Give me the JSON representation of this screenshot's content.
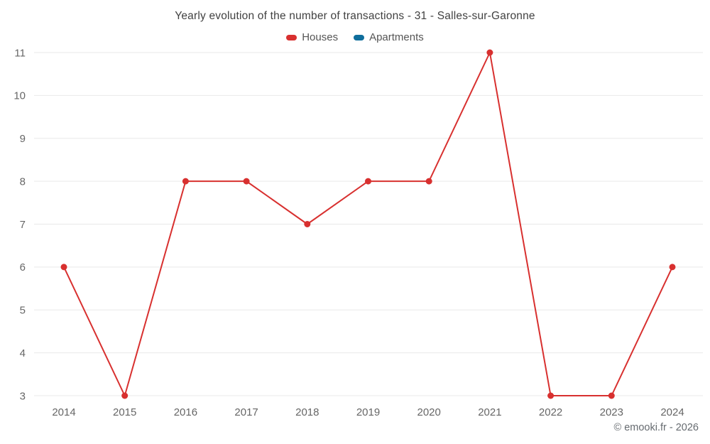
{
  "title": "Yearly evolution of the number of transactions - 31 - Salles-sur-Garonne",
  "legend": {
    "items": [
      {
        "label": "Houses",
        "color": "#d8302f"
      },
      {
        "label": "Apartments",
        "color": "#0f6e9c"
      }
    ]
  },
  "footer": "© emooki.fr - 2026",
  "colors": {
    "grid": "#e9e9e9",
    "tick_label": "#666666",
    "title": "#414141"
  },
  "chart_data": {
    "type": "line",
    "title": "Yearly evolution of the number of transactions - 31 - Salles-sur-Garonne",
    "categories": [
      "2014",
      "2015",
      "2016",
      "2017",
      "2018",
      "2019",
      "2020",
      "2021",
      "2022",
      "2023",
      "2024"
    ],
    "series": [
      {
        "name": "Houses",
        "color": "#d8302f",
        "values": [
          6,
          3,
          8,
          8,
          7,
          8,
          8,
          11,
          3,
          3,
          6
        ]
      },
      {
        "name": "Apartments",
        "color": "#0f6e9c",
        "values": []
      }
    ],
    "xlabel": "",
    "ylabel": "",
    "ylim": [
      3,
      11
    ],
    "yticks": [
      3,
      4,
      5,
      6,
      7,
      8,
      9,
      10,
      11
    ],
    "grid": true,
    "legend_position": "top"
  }
}
